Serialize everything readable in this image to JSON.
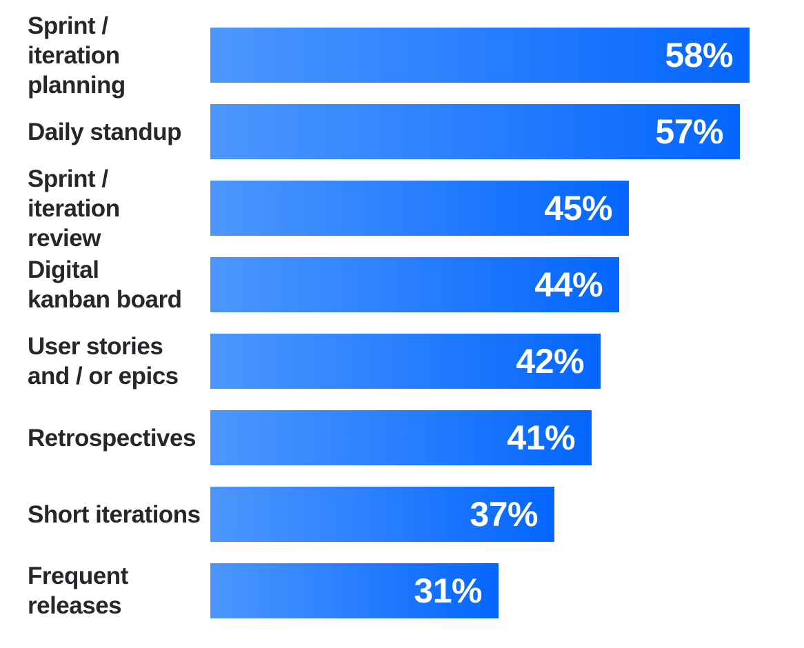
{
  "chart_data": {
    "type": "bar",
    "orientation": "horizontal",
    "title": "",
    "xlabel": "",
    "ylabel": "",
    "categories": [
      "Sprint / iteration\nplanning",
      "Daily standup",
      "Sprint / iteration\nreview",
      "Digital\nkanban board",
      "User stories\nand / or epics",
      "Retrospectives",
      "Short iterations",
      "Frequent releases"
    ],
    "values": [
      58,
      57,
      45,
      44,
      42,
      41,
      37,
      31
    ],
    "unit": "%",
    "value_labels": [
      "58%",
      "57%",
      "45%",
      "44%",
      "42%",
      "41%",
      "37%",
      "31%"
    ],
    "xlim": [
      0,
      60
    ],
    "grid": false,
    "legend": false,
    "axes_visible": false,
    "colors": {
      "bar_gradient_start": "#4C97FE",
      "bar_gradient_end": "#0466FD",
      "category_label": "#28252B",
      "value_label": "#FFFFFF",
      "background": "#FFFFFF"
    }
  }
}
